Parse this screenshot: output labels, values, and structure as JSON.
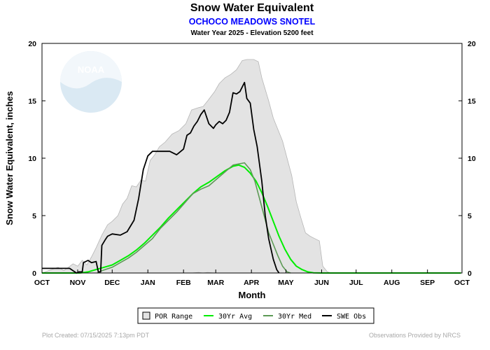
{
  "chart_data": {
    "type": "area",
    "title": "Snow Water Equivalent",
    "subtitle": "OCHOCO MEADOWS SNOTEL",
    "subtitle2": "Water Year 2025 -  Elevation 5200 feet",
    "xlabel": "Month",
    "ylabel": "Snow Water Equivalent, inches",
    "ylim": [
      0,
      20
    ],
    "xlim": [
      "Oct 1",
      "Oct 1"
    ],
    "grid": false,
    "legend_position": "bottom",
    "x_tick_labels": [
      "OCT",
      "NOV",
      "DEC",
      "JAN",
      "FEB",
      "MAR",
      "APR",
      "MAY",
      "JUN",
      "JUL",
      "AUG",
      "SEP",
      "OCT"
    ],
    "y_ticks": [
      0,
      5,
      10,
      15,
      20
    ],
    "colors": {
      "por_fill": "#e3e3e3",
      "por_edge": "#b5b5b5",
      "avg": "#00ee00",
      "med": "#5c9a55",
      "obs": "#000000",
      "subtitle": "#0000ff",
      "watermark": "#bcd8ea"
    },
    "series": [
      {
        "name": "POR Range",
        "kind": "range",
        "points": [
          [
            "Oct 1",
            0,
            0
          ],
          [
            "Oct 15",
            0,
            0.5
          ],
          [
            "Oct 20",
            0,
            0.2
          ],
          [
            "Oct 28",
            0,
            0.8
          ],
          [
            "Nov 1",
            0,
            0.6
          ],
          [
            "Nov 5",
            0,
            1.1
          ],
          [
            "Nov 9",
            0,
            0.7
          ],
          [
            "Nov 13",
            0,
            1.4
          ],
          [
            "Nov 17",
            0,
            2.2
          ],
          [
            "Nov 22",
            0,
            3.3
          ],
          [
            "Nov 27",
            0,
            4.2
          ],
          [
            "Dec 1",
            0,
            4.5
          ],
          [
            "Dec 6",
            0,
            5.0
          ],
          [
            "Dec 10",
            0,
            6.0
          ],
          [
            "Dec 14",
            0,
            6.5
          ],
          [
            "Dec 18",
            0,
            7.6
          ],
          [
            "Dec 22",
            0,
            7.5
          ],
          [
            "Dec 26",
            0,
            8.1
          ],
          [
            "Dec 30",
            0,
            8.0
          ],
          [
            "Jan 3",
            0,
            9.8
          ],
          [
            "Jan 7",
            0,
            10.3
          ],
          [
            "Jan 11",
            0,
            11.0
          ],
          [
            "Jan 16",
            0,
            11.4
          ],
          [
            "Jan 22",
            0,
            12.1
          ],
          [
            "Jan 28",
            0,
            12.4
          ],
          [
            "Feb 3",
            0,
            13.0
          ],
          [
            "Feb 8",
            0,
            14.2
          ],
          [
            "Feb 14",
            0.05,
            14.4
          ],
          [
            "Feb 18",
            0,
            14.5
          ],
          [
            "Feb 22",
            0.05,
            15.0
          ],
          [
            "Feb 28",
            0,
            15.8
          ],
          [
            "Mar 4",
            0,
            16.5
          ],
          [
            "Mar 9",
            0,
            17.0
          ],
          [
            "Mar 14",
            0,
            17.3
          ],
          [
            "Mar 19",
            0,
            17.7
          ],
          [
            "Mar 24",
            0,
            18.5
          ],
          [
            "Mar 28",
            0,
            18.6
          ],
          [
            "Apr 3",
            0,
            18.6
          ],
          [
            "Apr 7",
            0,
            18.4
          ],
          [
            "Apr 10",
            0,
            17.0
          ],
          [
            "Apr 13",
            0,
            16.0
          ],
          [
            "Apr 16",
            0,
            15.0
          ],
          [
            "Apr 20",
            0,
            13.5
          ],
          [
            "Apr 24",
            0,
            12.5
          ],
          [
            "Apr 28",
            0,
            11.5
          ],
          [
            "May 2",
            0,
            10.0
          ],
          [
            "May 6",
            0,
            8.5
          ],
          [
            "May 10",
            0,
            6.2
          ],
          [
            "May 14",
            0,
            4.8
          ],
          [
            "May 18",
            0,
            3.5
          ],
          [
            "May 22",
            0,
            3.2
          ],
          [
            "May 26",
            0,
            3.0
          ],
          [
            "May 30",
            0,
            2.8
          ],
          [
            "Jun 2",
            0,
            0.6
          ],
          [
            "Jun 6",
            0,
            0.1
          ],
          [
            "Jun 10",
            0,
            0
          ]
        ]
      },
      {
        "name": "30Yr Avg",
        "kind": "line",
        "points": [
          [
            "Oct 1",
            0
          ],
          [
            "Oct 31",
            0
          ],
          [
            "Nov 3",
            0
          ],
          [
            "Nov 10",
            0.1
          ],
          [
            "Nov 17",
            0.3
          ],
          [
            "Nov 24",
            0.5
          ],
          [
            "Dec 1",
            0.7
          ],
          [
            "Dec 8",
            1.1
          ],
          [
            "Dec 15",
            1.5
          ],
          [
            "Dec 22",
            2.0
          ],
          [
            "Dec 29",
            2.6
          ],
          [
            "Jan 5",
            3.3
          ],
          [
            "Jan 12",
            4.0
          ],
          [
            "Jan 19",
            4.8
          ],
          [
            "Jan 26",
            5.5
          ],
          [
            "Feb 2",
            6.2
          ],
          [
            "Feb 9",
            6.9
          ],
          [
            "Feb 16",
            7.5
          ],
          [
            "Feb 23",
            7.9
          ],
          [
            "Mar 2",
            8.4
          ],
          [
            "Mar 9",
            8.9
          ],
          [
            "Mar 16",
            9.3
          ],
          [
            "Mar 21",
            9.4
          ],
          [
            "Mar 26",
            9.2
          ],
          [
            "Mar 31",
            8.7
          ],
          [
            "Apr 5",
            8.0
          ],
          [
            "Apr 10",
            7.0
          ],
          [
            "Apr 15",
            5.8
          ],
          [
            "Apr 20",
            4.5
          ],
          [
            "Apr 25",
            3.2
          ],
          [
            "Apr 30",
            2.1
          ],
          [
            "May 5",
            1.2
          ],
          [
            "May 10",
            0.6
          ],
          [
            "May 15",
            0.3
          ],
          [
            "May 20",
            0.1
          ],
          [
            "May 25",
            0.02
          ],
          [
            "Jun 1",
            0
          ],
          [
            "Sep 30",
            0
          ]
        ]
      },
      {
        "name": "30Yr Med",
        "kind": "line",
        "points": [
          [
            "Nov 18",
            0
          ],
          [
            "Nov 22",
            0.2
          ],
          [
            "Dec 1",
            0.5
          ],
          [
            "Dec 8",
            0.9
          ],
          [
            "Dec 15",
            1.3
          ],
          [
            "Dec 22",
            1.8
          ],
          [
            "Dec 29",
            2.4
          ],
          [
            "Jan 5",
            3.0
          ],
          [
            "Jan 12",
            3.9
          ],
          [
            "Jan 19",
            4.6
          ],
          [
            "Jan 26",
            5.3
          ],
          [
            "Feb 2",
            6.1
          ],
          [
            "Feb 9",
            6.9
          ],
          [
            "Feb 16",
            7.3
          ],
          [
            "Feb 23",
            7.6
          ],
          [
            "Mar 2",
            8.2
          ],
          [
            "Mar 9",
            8.8
          ],
          [
            "Mar 16",
            9.4
          ],
          [
            "Mar 21",
            9.5
          ],
          [
            "Mar 26",
            9.6
          ],
          [
            "Mar 31",
            9.0
          ],
          [
            "Apr 4",
            8.0
          ],
          [
            "Apr 8",
            6.5
          ],
          [
            "Apr 12",
            5.0
          ],
          [
            "Apr 16",
            3.5
          ],
          [
            "Apr 20",
            2.5
          ],
          [
            "Apr 24",
            1.5
          ],
          [
            "Apr 28",
            0.6
          ],
          [
            "May 2",
            0.1
          ],
          [
            "May 5",
            0
          ]
        ]
      },
      {
        "name": "SWE Obs",
        "kind": "line",
        "points": [
          [
            "Oct 1",
            0.4
          ],
          [
            "Oct 25",
            0.4
          ],
          [
            "Oct 28",
            0.2
          ],
          [
            "Oct 31",
            0
          ],
          [
            "Nov 2",
            0.1
          ],
          [
            "Nov 5",
            0.1
          ],
          [
            "Nov 6",
            0.9
          ],
          [
            "Nov 10",
            1.1
          ],
          [
            "Nov 13",
            0.9
          ],
          [
            "Nov 17",
            1.0
          ],
          [
            "Nov 19",
            0.1
          ],
          [
            "Nov 21",
            0.1
          ],
          [
            "Nov 22",
            2.4
          ],
          [
            "Nov 25",
            2.9
          ],
          [
            "Nov 27",
            3.2
          ],
          [
            "Dec 1",
            3.4
          ],
          [
            "Dec 8",
            3.3
          ],
          [
            "Dec 14",
            3.6
          ],
          [
            "Dec 20",
            4.6
          ],
          [
            "Dec 24",
            6.5
          ],
          [
            "Dec 28",
            9.0
          ],
          [
            "Jan 1",
            10.2
          ],
          [
            "Jan 5",
            10.6
          ],
          [
            "Jan 10",
            10.6
          ],
          [
            "Jan 20",
            10.6
          ],
          [
            "Jan 26",
            10.3
          ],
          [
            "Feb 1",
            10.8
          ],
          [
            "Feb 4",
            12.0
          ],
          [
            "Feb 7",
            12.2
          ],
          [
            "Feb 10",
            12.8
          ],
          [
            "Feb 13",
            13.2
          ],
          [
            "Feb 16",
            13.8
          ],
          [
            "Feb 19",
            14.2
          ],
          [
            "Feb 23",
            13.0
          ],
          [
            "Feb 27",
            12.6
          ],
          [
            "Mar 1",
            12.9
          ],
          [
            "Mar 4",
            13.2
          ],
          [
            "Mar 7",
            13.0
          ],
          [
            "Mar 10",
            13.3
          ],
          [
            "Mar 13",
            14.0
          ],
          [
            "Mar 16",
            15.7
          ],
          [
            "Mar 19",
            15.6
          ],
          [
            "Mar 22",
            15.8
          ],
          [
            "Mar 26",
            16.6
          ],
          [
            "Mar 28",
            15.2
          ],
          [
            "Mar 31",
            14.8
          ],
          [
            "Apr 3",
            12.5
          ],
          [
            "Apr 6",
            11.0
          ],
          [
            "Apr 10",
            8.0
          ],
          [
            "Apr 13",
            5.0
          ],
          [
            "Apr 16",
            3.0
          ],
          [
            "Apr 20",
            1.2
          ],
          [
            "Apr 23",
            0.3
          ],
          [
            "Apr 25",
            0
          ]
        ]
      }
    ],
    "legend": [
      "POR Range",
      "30Yr Avg",
      "30Yr Med",
      "SWE Obs"
    ],
    "watermark": "NOAA",
    "footer_left": "Plot Created: 07/15/2025 7:13pm PDT",
    "footer_right": "Observations Provided by NRCS"
  }
}
